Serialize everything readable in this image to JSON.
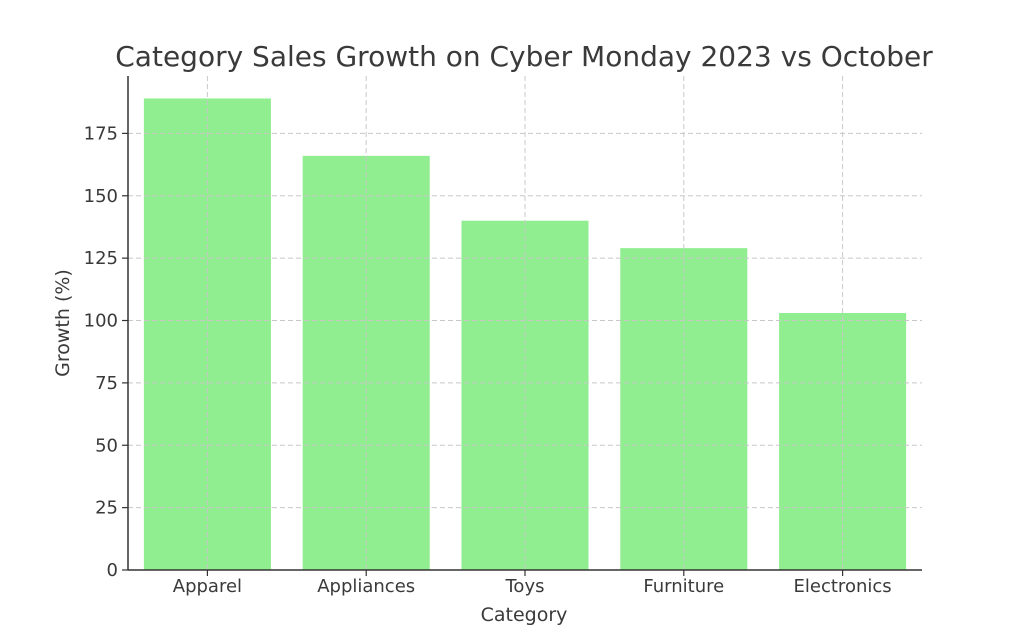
{
  "chart_data": {
    "type": "bar",
    "title": "Category Sales Growth on Cyber Monday 2023 vs October",
    "xlabel": "Category",
    "ylabel": "Growth (%)",
    "categories": [
      "Apparel",
      "Appliances",
      "Toys",
      "Furniture",
      "Electronics"
    ],
    "values": [
      189,
      166,
      140,
      129,
      103
    ],
    "ylim": [
      0,
      198
    ],
    "yticks": [
      0,
      25,
      50,
      75,
      100,
      125,
      150,
      175
    ],
    "grid": true,
    "bar_color": "#90ee90"
  }
}
